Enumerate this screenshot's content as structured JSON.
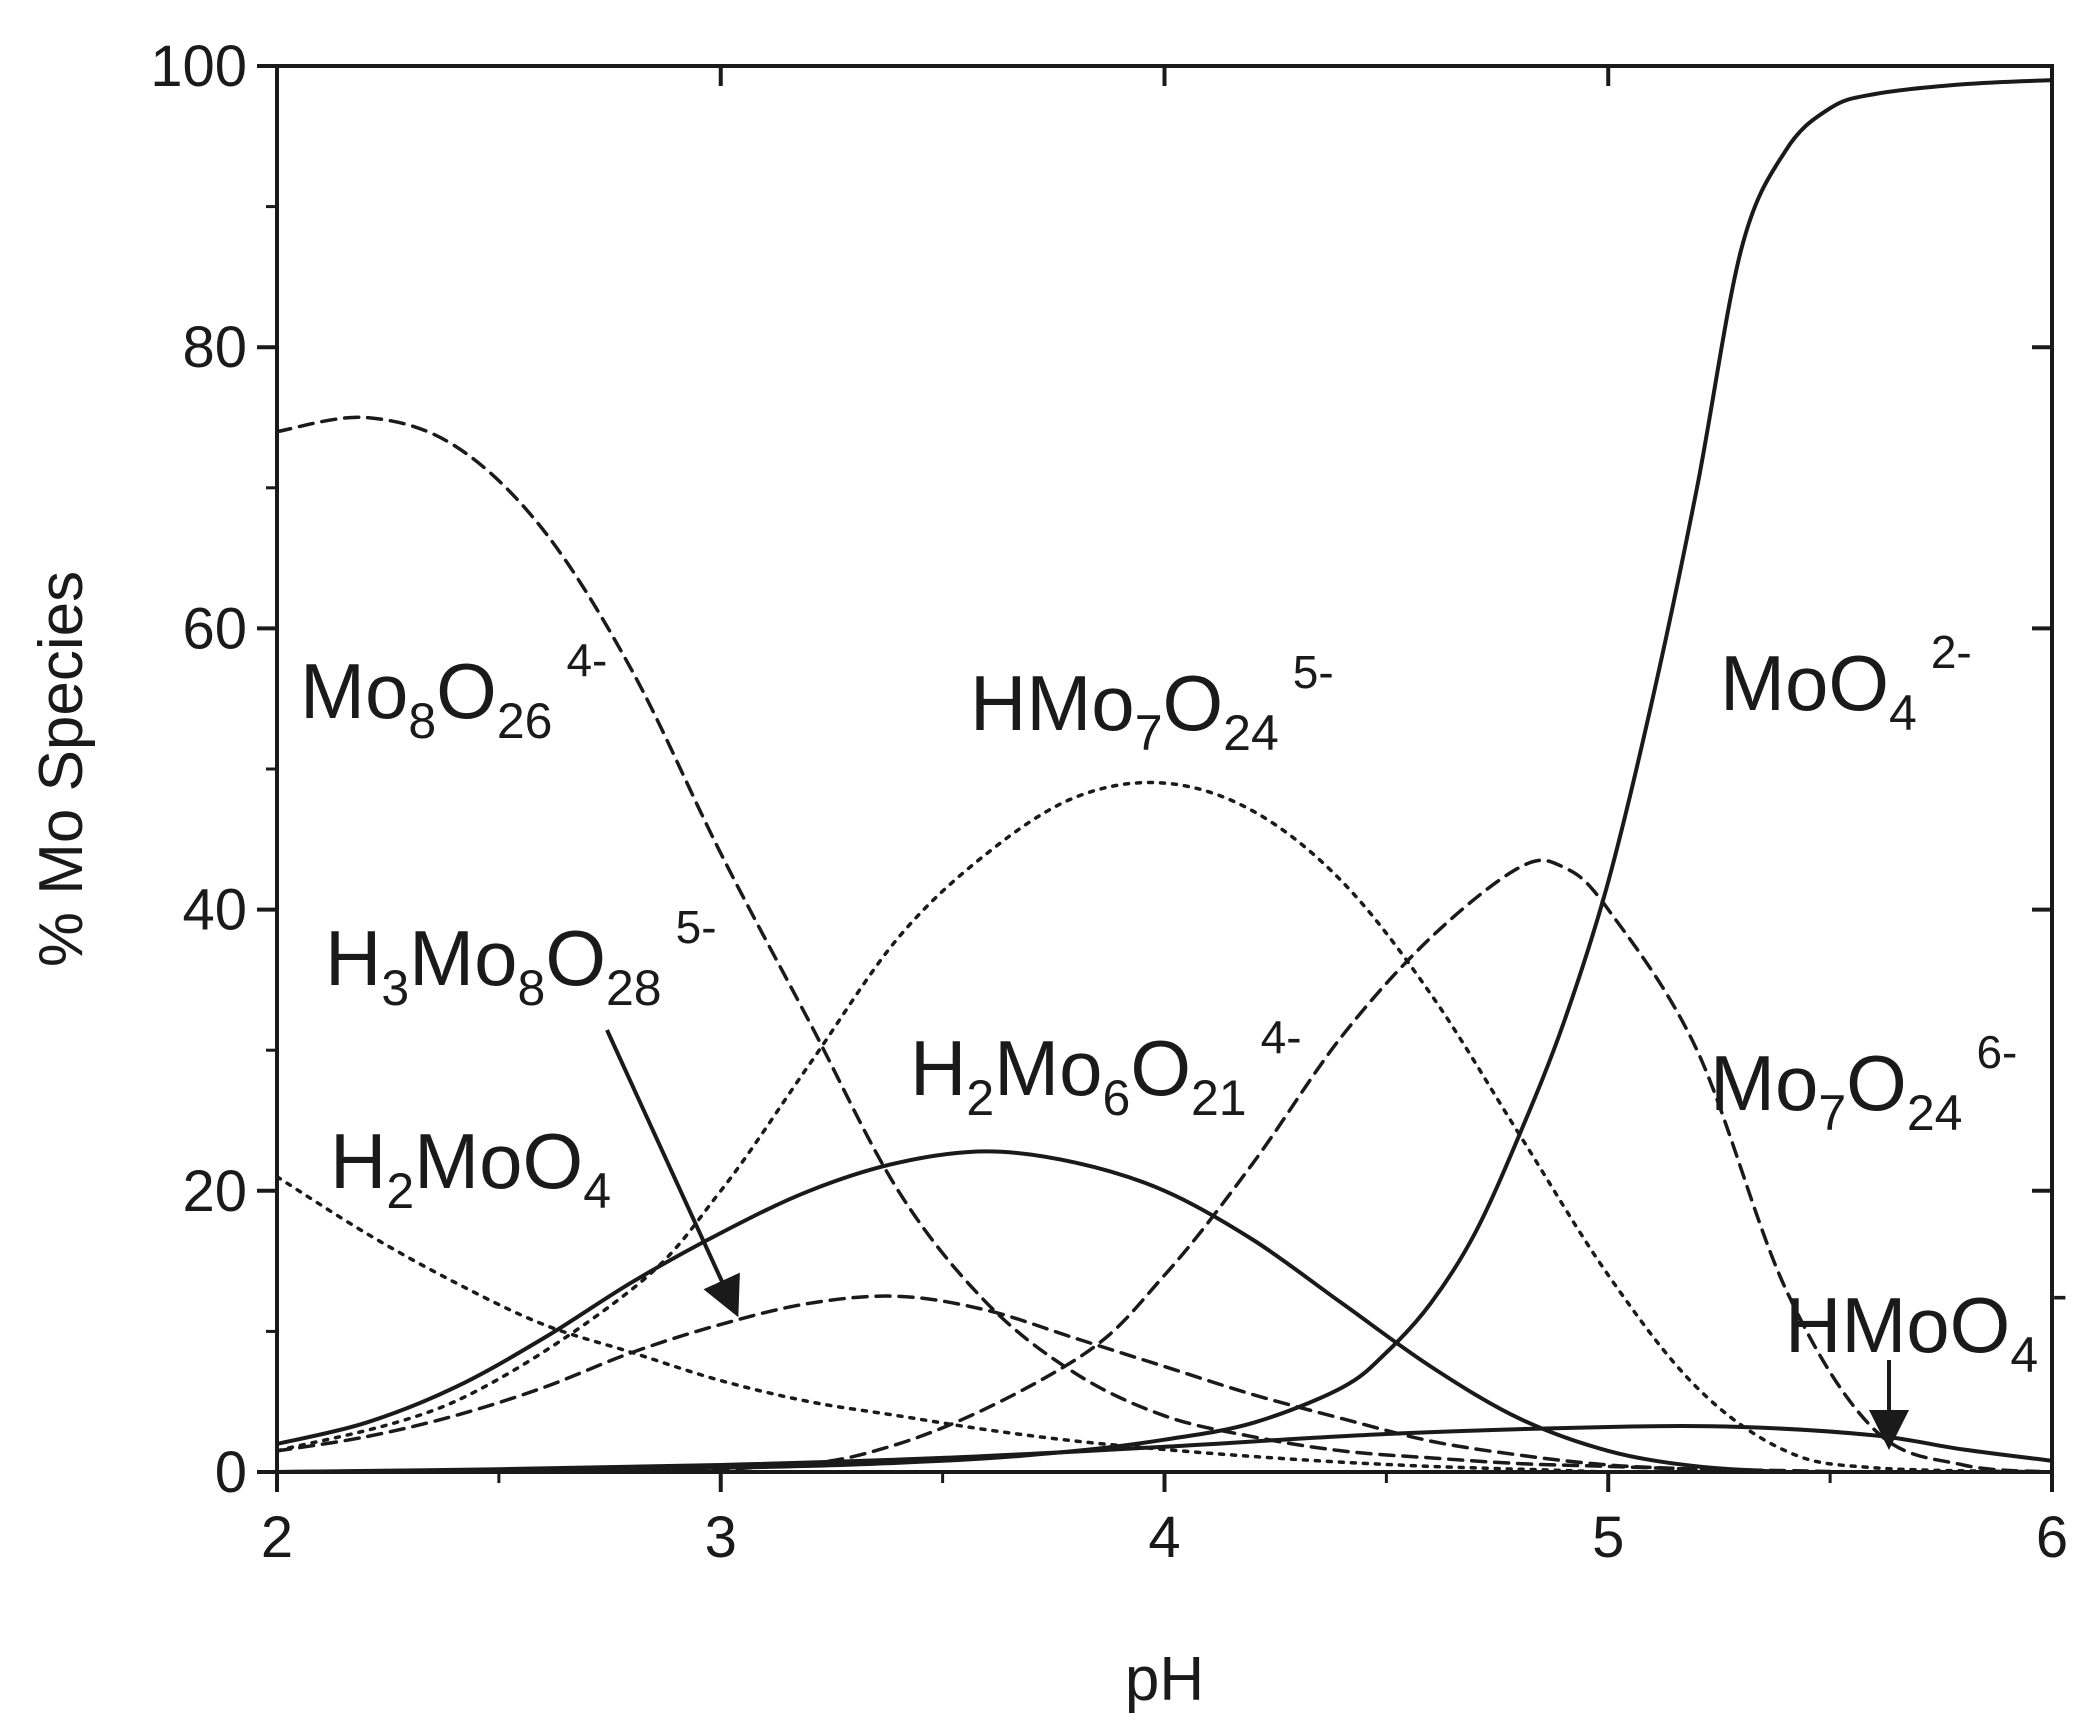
{
  "chart_data": {
    "type": "line",
    "xlabel": "pH",
    "ylabel": "% Mo Species",
    "xlim": [
      2,
      6
    ],
    "ylim": [
      0,
      100
    ],
    "x_ticks": [
      "2",
      "3",
      "4",
      "5",
      "6"
    ],
    "y_ticks": [
      "0",
      "20",
      "40",
      "60",
      "80",
      "100"
    ],
    "grid": false,
    "annotations": [
      {
        "base": "Mo",
        "s1": "8",
        "b2": "O",
        "s2": "26",
        "sup": "4-"
      },
      {
        "base": "HMo",
        "s1": "7",
        "b2": "O",
        "s2": "24",
        "sup": "5-"
      },
      {
        "base": "MoO",
        "s1": "4",
        "b2": "",
        "s2": "",
        "sup": "2-"
      },
      {
        "base": "H",
        "s1": "3",
        "b2": "Mo",
        "s2": "8",
        "b3": "O",
        "s3": "28",
        "sup": "5-"
      },
      {
        "base": "H",
        "s1": "2",
        "b2": "Mo",
        "s2": "6",
        "b3": "O",
        "s3": "21",
        "sup": "4-"
      },
      {
        "base": "Mo",
        "s1": "7",
        "b2": "O",
        "s2": "24",
        "sup": "6-"
      },
      {
        "base": "H",
        "s1": "2",
        "b2": "MoO",
        "s2": "4",
        "sup": ""
      },
      {
        "base": "HMoO",
        "s1": "4",
        "b2": "",
        "s2": "",
        "sup": "-"
      }
    ],
    "series": [
      {
        "style": "dash",
        "x": [
          2.0,
          2.2,
          2.4,
          2.6,
          2.8,
          3.0,
          3.2,
          3.4,
          3.6,
          3.8,
          4.0,
          4.2,
          4.4,
          4.6,
          4.8,
          5.0,
          5.2,
          5.4,
          5.6,
          6.0
        ],
        "y": [
          74,
          75,
          73,
          67,
          57,
          44,
          32,
          20,
          12,
          7,
          4,
          2.5,
          1.5,
          1,
          0.6,
          0.4,
          0.2,
          0.1,
          0,
          0
        ]
      },
      {
        "style": "dot",
        "x": [
          2.0,
          2.4,
          2.8,
          3.0,
          3.2,
          3.4,
          3.6,
          3.8,
          4.0,
          4.2,
          4.4,
          4.6,
          4.8,
          5.0,
          5.2,
          5.4,
          5.6,
          6.0
        ],
        "y": [
          1.5,
          5,
          13,
          20,
          29,
          38,
          44,
          48,
          49,
          47,
          42,
          34,
          24,
          14,
          6,
          1.5,
          0.3,
          0
        ]
      },
      {
        "style": "dash",
        "x": [
          2.0,
          3.0,
          3.4,
          3.8,
          4.0,
          4.2,
          4.4,
          4.6,
          4.8,
          4.9,
          5.0,
          5.2,
          5.4,
          5.6,
          5.8,
          6.0
        ],
        "y": [
          0,
          0.2,
          2,
          8,
          14,
          22,
          31,
          38,
          43,
          43,
          40,
          30,
          13,
          3,
          0.5,
          0
        ]
      },
      {
        "style": "solid",
        "x": [
          2.0,
          3.0,
          3.5,
          3.8,
          4.0,
          4.2,
          4.4,
          4.5,
          4.6,
          4.7,
          4.8,
          4.9,
          5.0,
          5.1,
          5.2,
          5.3,
          5.4,
          5.5,
          5.6,
          5.8,
          6.0
        ],
        "y": [
          0,
          0.3,
          0.8,
          1.5,
          2.3,
          3.5,
          6,
          8.5,
          12,
          17,
          24,
          32,
          42,
          55,
          70,
          87,
          94,
          97,
          98,
          98.7,
          99
        ]
      },
      {
        "style": "solid",
        "x": [
          2.0,
          2.2,
          2.4,
          2.6,
          2.8,
          3.0,
          3.2,
          3.4,
          3.6,
          3.8,
          4.0,
          4.2,
          4.4,
          4.6,
          4.8,
          5.0,
          5.2,
          5.4
        ],
        "y": [
          2,
          3.5,
          6,
          9.5,
          13.5,
          17,
          20,
          22,
          22.8,
          22,
          20,
          16.5,
          12,
          7.5,
          3.8,
          1.5,
          0.4,
          0
        ]
      },
      {
        "style": "dash",
        "x": [
          2.0,
          2.2,
          2.4,
          2.6,
          2.8,
          3.0,
          3.2,
          3.4,
          3.6,
          3.8,
          4.0,
          4.2,
          4.4,
          4.6,
          4.8,
          5.0,
          5.2,
          5.4
        ],
        "y": [
          1.5,
          2.5,
          4,
          6,
          8.5,
          10.5,
          12,
          12.5,
          11.5,
          9.5,
          7.5,
          5.5,
          3.8,
          2.2,
          1.2,
          0.5,
          0.2,
          0
        ]
      },
      {
        "style": "dot",
        "x": [
          2.0,
          2.2,
          2.4,
          2.6,
          2.8,
          3.0,
          3.2,
          3.4,
          3.6,
          3.8,
          4.0,
          4.2,
          4.4,
          4.6,
          4.8,
          5.0
        ],
        "y": [
          21,
          17,
          13.5,
          10.5,
          8.5,
          6.5,
          5,
          4,
          3,
          2.2,
          1.6,
          1.1,
          0.7,
          0.4,
          0.2,
          0
        ]
      },
      {
        "style": "solid",
        "x": [
          2.0,
          2.5,
          3.0,
          3.5,
          4.0,
          4.5,
          5.0,
          5.3,
          5.6,
          5.8,
          6.0
        ],
        "y": [
          0,
          0.2,
          0.5,
          1,
          1.8,
          2.7,
          3.2,
          3.2,
          2.6,
          1.6,
          0.8
        ]
      }
    ]
  }
}
